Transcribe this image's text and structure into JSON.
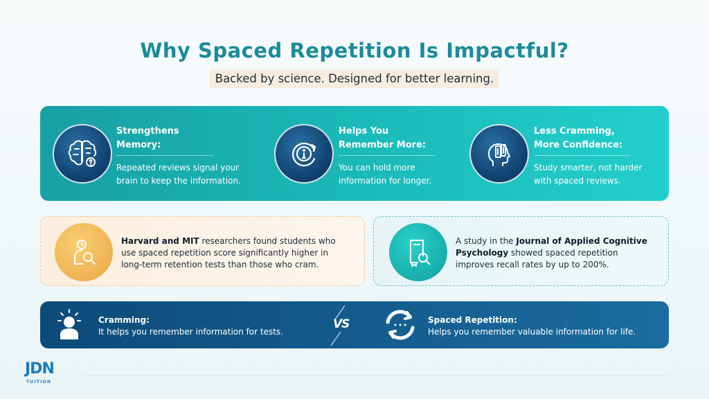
{
  "header": {
    "title": "Why Spaced Repetition Is Impactful?",
    "subtitle": "Backed by science. Designed for better learning."
  },
  "benefits": [
    {
      "icon": "brain-icon",
      "title": "Strengthens\nMemory:",
      "description_line1": "Repeated reviews signal your",
      "description_line2": "brain to keep the information."
    },
    {
      "icon": "info-refresh-icon",
      "title": "Helps You\nRemember More:",
      "description_line1": "You can hold more",
      "description_line2": "information for longer."
    },
    {
      "icon": "head-book-icon",
      "title": "Less Cramming,\nMore Confidence:",
      "description_line1": "Study smarter, not harder",
      "description_line2": "with spaced reviews."
    }
  ],
  "studies": {
    "left": {
      "icon": "researcher-search-icon",
      "bold": "Harvard and MIT",
      "line1_rest": " researchers found students who",
      "line2": "use spaced repetition score significantly higher in",
      "line3": "long-term retention tests than those who cram."
    },
    "right": {
      "icon": "book-search-icon",
      "line1_pre": "A study in the ",
      "line1_bold": "Journal of Applied Cognitive",
      "line2_bold": "Psychology",
      "line2_rest": " showed spaced repetition",
      "line3": "improves recall rates by up to 200%."
    }
  },
  "comparison": {
    "left": {
      "icon": "stressed-student-icon",
      "title": "Cramming:",
      "description": "It helps you remember information for tests."
    },
    "vs": "VS",
    "right": {
      "icon": "repeat-cycle-icon",
      "title": "Spaced Repetition:",
      "description": "Helps you remember valuable information for life."
    }
  },
  "footer": {
    "logo_main": "JDN",
    "logo_sub": "TUITION"
  },
  "colors": {
    "title": "#1b8b9a",
    "subtitle_bg": "#f8ece0",
    "teal_banner": "#1bb9b9",
    "navy_banner": "#0d4a78",
    "icon_navy": "#0e3f6d",
    "card_orange": "#eeae4d",
    "card_teal": "#14aaa9",
    "logo_blue": "#1b7bbf"
  }
}
